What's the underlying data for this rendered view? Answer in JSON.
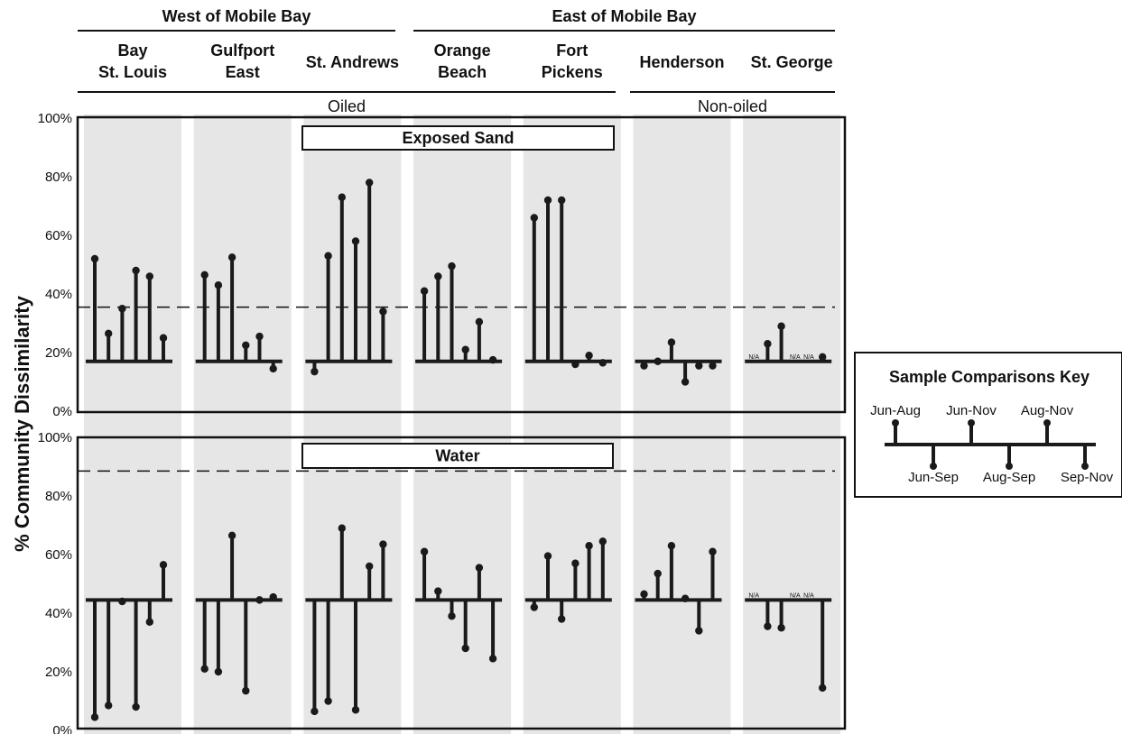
{
  "chart_data": {
    "type": "lollipop",
    "y_axis_label": "% Community Dissimilarity",
    "y_ticks": [
      "0%",
      "20%",
      "40%",
      "60%",
      "80%",
      "100%"
    ],
    "ylim": [
      0,
      100
    ],
    "region_groups": [
      {
        "label": "West of Mobile Bay",
        "sites": [
          "Bay St. Louis",
          "Gulfport East",
          "St. Andrews"
        ]
      },
      {
        "label": "East of Mobile Bay",
        "sites": [
          "Orange Beach",
          "Fort Pickens",
          "Henderson",
          "St. George"
        ]
      }
    ],
    "oiling_groups": [
      {
        "label": "Oiled",
        "sites": [
          "Bay St. Louis",
          "Gulfport East",
          "St. Andrews",
          "Orange Beach",
          "Fort Pickens"
        ]
      },
      {
        "label": "Non-oiled",
        "sites": [
          "Henderson",
          "St. George"
        ]
      }
    ],
    "sites": [
      {
        "name": "Bay St. Louis",
        "lines": [
          "Bay",
          "St. Louis"
        ]
      },
      {
        "name": "Gulfport East",
        "lines": [
          "Gulfport",
          "East"
        ]
      },
      {
        "name": "St. Andrews",
        "lines": [
          "St. Andrews"
        ]
      },
      {
        "name": "Orange Beach",
        "lines": [
          "Orange",
          "Beach"
        ]
      },
      {
        "name": "Fort Pickens",
        "lines": [
          "Fort",
          "Pickens"
        ]
      },
      {
        "name": "Henderson",
        "lines": [
          "Henderson"
        ]
      },
      {
        "name": "St. George",
        "lines": [
          "St. George"
        ]
      }
    ],
    "comparisons": [
      "Jun-Aug",
      "Jun-Sep",
      "Jun-Nov",
      "Aug-Sep",
      "Aug-Nov",
      "Sep-Nov"
    ],
    "missing_label": "N/A",
    "panels": [
      {
        "title": "Exposed Sand",
        "baseline": 17,
        "dashed_line": 35.5,
        "values": [
          [
            52,
            26.5,
            35,
            48,
            46,
            25
          ],
          [
            46.5,
            43,
            52.5,
            22.5,
            25.5,
            14.5
          ],
          [
            13.5,
            53,
            73,
            58,
            78,
            34
          ],
          [
            41,
            46,
            49.5,
            21,
            30.5,
            17.5
          ],
          [
            66,
            72,
            72,
            16,
            19,
            16.5
          ],
          [
            15.5,
            17,
            23.5,
            10,
            15.5,
            15.5
          ],
          [
            null,
            23,
            29,
            null,
            null,
            18.5
          ]
        ]
      },
      {
        "title": "Water",
        "baseline": 44.5,
        "dashed_line": 88.5,
        "values": [
          [
            4.5,
            8.5,
            44,
            8,
            37,
            56.5
          ],
          [
            21,
            20,
            66.5,
            13.5,
            44.5,
            45.5
          ],
          [
            6.5,
            10,
            69,
            7,
            56,
            63.5
          ],
          [
            61,
            47.5,
            39,
            28,
            55.5,
            24.5
          ],
          [
            42,
            59.5,
            38,
            57,
            63,
            64.5
          ],
          [
            46.5,
            53.5,
            63,
            45,
            34,
            61
          ],
          [
            null,
            35.5,
            35,
            null,
            null,
            14.5
          ]
        ]
      }
    ],
    "key": {
      "title": "Sample Comparisons Key",
      "above": [
        "Jun-Aug",
        "Jun-Nov",
        "Aug-Nov"
      ],
      "below": [
        "Jun-Sep",
        "Aug-Sep",
        "Sep-Nov"
      ]
    }
  }
}
